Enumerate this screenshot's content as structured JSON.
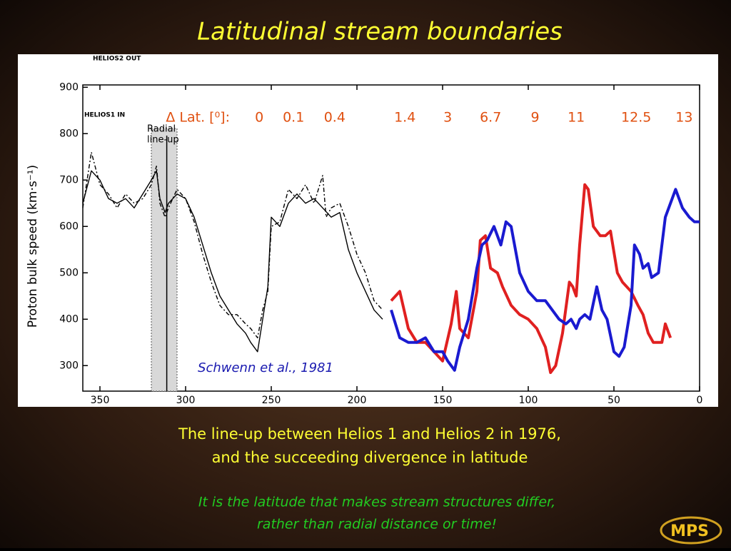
{
  "chart_data": {
    "type": "line",
    "title": "Latitudinal stream boundaries",
    "y_label": "Proton bulk speed (km·s⁻¹)",
    "header_labels": [
      "HELIOS2 OUT",
      "HELIOS1 IN"
    ],
    "citation": "Schwenn et al., 1981",
    "caption": [
      "The line-up between Helios 1 and Helios 2 in 1976,",
      "and the succeeding divergence in latitude"
    ],
    "remark": [
      "It is the latitude that makes stream structures differ,",
      "rather than radial distance or time!"
    ],
    "logo": "MPS",
    "lineup": {
      "label": [
        "Radial",
        "line-up"
      ],
      "band": [
        320,
        305
      ],
      "line": 311
    },
    "lat_diff": {
      "label": "Δ Lat. [⁰]:",
      "x": [
        257,
        237,
        213,
        172,
        147,
        122,
        96,
        72,
        37,
        9
      ],
      "values": [
        0,
        0.1,
        0.4,
        1.4,
        3,
        6.7,
        9,
        11,
        12.5,
        13
      ]
    },
    "xlim": [
      360,
      0
    ],
    "ylim": [
      245,
      905
    ],
    "xticks": [
      350,
      300,
      250,
      200,
      150,
      100,
      50,
      0
    ],
    "yticks": [
      300,
      400,
      500,
      600,
      700,
      800,
      900
    ],
    "series": [
      {
        "color": "#000000",
        "dashed": false,
        "width": 1.4,
        "x": [
          360,
          355,
          350,
          345,
          340,
          335,
          330,
          325,
          320,
          317,
          315,
          312,
          310,
          305,
          300,
          295,
          290,
          285,
          280,
          275,
          270,
          265,
          262,
          258,
          255,
          252,
          250,
          245,
          240,
          235,
          230,
          225,
          220,
          215,
          210,
          205,
          200,
          195,
          190,
          185
        ],
        "values": [
          650,
          720,
          700,
          660,
          650,
          660,
          640,
          670,
          700,
          720,
          660,
          630,
          650,
          670,
          660,
          620,
          560,
          500,
          450,
          420,
          390,
          370,
          350,
          330,
          400,
          470,
          620,
          600,
          650,
          670,
          650,
          660,
          640,
          620,
          630,
          550,
          500,
          460,
          420,
          400
        ]
      },
      {
        "color": "#000000",
        "dashed": true,
        "width": 1.4,
        "x": [
          360,
          355,
          350,
          345,
          340,
          335,
          330,
          325,
          320,
          317,
          315,
          312,
          310,
          305,
          300,
          295,
          290,
          285,
          280,
          275,
          270,
          265,
          262,
          258,
          255,
          252,
          250,
          245,
          240,
          235,
          230,
          225,
          220,
          218,
          215,
          210,
          205,
          200,
          195,
          190,
          185
        ],
        "values": [
          640,
          760,
          690,
          670,
          640,
          670,
          650,
          660,
          690,
          730,
          650,
          620,
          640,
          680,
          660,
          610,
          540,
          480,
          430,
          410,
          410,
          390,
          380,
          360,
          420,
          460,
          600,
          610,
          680,
          660,
          690,
          650,
          710,
          620,
          640,
          650,
          600,
          540,
          500,
          440,
          420
        ]
      },
      {
        "color": "#e02020",
        "dashed": false,
        "width": 4,
        "x": [
          180,
          175,
          170,
          165,
          160,
          155,
          150,
          145,
          142,
          140,
          135,
          130,
          128,
          125,
          122,
          118,
          115,
          110,
          105,
          100,
          95,
          90,
          87,
          84,
          80,
          76,
          74,
          72,
          70,
          67,
          65,
          62,
          58,
          55,
          52,
          48,
          45,
          40,
          36,
          33,
          30,
          27,
          24,
          22,
          20,
          17
        ],
        "values": [
          440,
          460,
          380,
          350,
          350,
          330,
          310,
          390,
          460,
          380,
          360,
          460,
          570,
          580,
          510,
          500,
          470,
          430,
          410,
          400,
          380,
          340,
          285,
          300,
          370,
          480,
          470,
          450,
          560,
          690,
          680,
          600,
          580,
          580,
          590,
          500,
          480,
          460,
          430,
          410,
          370,
          350,
          350,
          350,
          390,
          360
        ]
      },
      {
        "color": "#1a1ad0",
        "dashed": false,
        "width": 4,
        "x": [
          180,
          175,
          170,
          165,
          160,
          155,
          150,
          147,
          143,
          140,
          135,
          130,
          127,
          124,
          120,
          116,
          113,
          110,
          105,
          100,
          95,
          90,
          86,
          82,
          78,
          75,
          72,
          70,
          67,
          64,
          60,
          57,
          54,
          50,
          47,
          44,
          40,
          38,
          35,
          33,
          30,
          28,
          24,
          20,
          17,
          14,
          10,
          6,
          3,
          0
        ],
        "values": [
          420,
          360,
          350,
          350,
          360,
          330,
          330,
          310,
          290,
          340,
          400,
          510,
          560,
          570,
          600,
          560,
          610,
          600,
          500,
          460,
          440,
          440,
          420,
          400,
          390,
          400,
          380,
          400,
          410,
          400,
          470,
          420,
          400,
          330,
          320,
          340,
          430,
          560,
          540,
          510,
          520,
          490,
          500,
          620,
          650,
          680,
          640,
          620,
          610,
          610
        ]
      }
    ]
  }
}
